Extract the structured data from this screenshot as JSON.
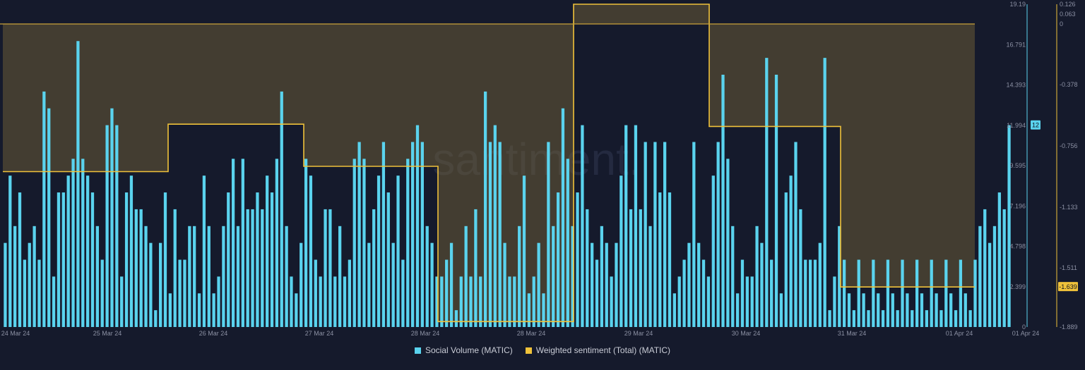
{
  "chart_data": {
    "type": "bar",
    "watermark": "santiment.",
    "x_ticks": [
      "24 Mar 24",
      "25 Mar 24",
      "26 Mar 24",
      "27 Mar 24",
      "28 Mar 24",
      "28 Mar 24",
      "29 Mar 24",
      "30 Mar 24",
      "31 Mar 24",
      "01 Apr 24",
      "01 Apr 24"
    ],
    "y_left": {
      "ticks": [
        "0",
        "2.399",
        "4.798",
        "7.196",
        "9.595",
        "11.994",
        "14.393",
        "16.791",
        "19.19"
      ],
      "ylim": [
        0,
        19.19
      ],
      "current_value_label": "12",
      "color": "#5ad3ee"
    },
    "y_right": {
      "ticks": [
        "-1.889",
        "-1.639",
        "-1.511",
        "-1.133",
        "-0.756",
        "-0.378",
        "0",
        "0.063",
        "0.126"
      ],
      "ylim": [
        -1.889,
        0.126
      ],
      "current_value_label": "-1.639",
      "color": "#f0c23a"
    },
    "series": [
      {
        "name": "Social Volume (MATIC)",
        "type": "bar",
        "color": "#5ad3ee",
        "values": [
          5,
          9,
          6,
          8,
          4,
          5,
          6,
          4,
          14,
          13,
          3,
          8,
          8,
          9,
          10,
          17,
          10,
          9,
          8,
          6,
          4,
          12,
          13,
          12,
          3,
          8,
          9,
          7,
          7,
          6,
          5,
          1,
          5,
          8,
          2,
          7,
          4,
          4,
          6,
          6,
          2,
          9,
          6,
          2,
          3,
          6,
          8,
          10,
          6,
          10,
          7,
          7,
          8,
          7,
          9,
          8,
          10,
          14,
          6,
          3,
          2,
          5,
          10,
          9,
          4,
          3,
          7,
          7,
          3,
          6,
          3,
          4,
          10,
          11,
          10,
          5,
          7,
          9,
          11,
          8,
          5,
          9,
          4,
          10,
          11,
          12,
          11,
          6,
          5,
          3,
          3,
          4,
          5,
          1,
          3,
          6,
          3,
          7,
          3,
          14,
          11,
          12,
          11,
          5,
          3,
          3,
          6,
          9,
          2,
          3,
          5,
          2,
          11,
          6,
          8,
          13,
          10,
          6,
          8,
          12,
          7,
          5,
          4,
          6,
          5,
          3,
          5,
          9,
          12,
          7,
          12,
          7,
          11,
          6,
          11,
          8,
          11,
          8,
          2,
          3,
          4,
          5,
          11,
          5,
          4,
          3,
          9,
          11,
          15,
          10,
          6,
          2,
          4,
          3,
          3,
          6,
          5,
          16,
          4,
          15,
          2,
          8,
          9,
          11,
          7,
          4,
          4,
          4,
          5,
          16,
          1,
          3,
          6,
          4,
          2,
          1,
          4,
          2,
          1,
          4,
          2,
          1,
          4,
          2,
          1,
          4,
          2,
          1,
          4,
          2,
          1,
          4,
          2,
          1,
          4,
          2,
          1,
          4,
          2,
          1,
          4,
          6,
          7,
          5,
          6,
          8,
          7,
          12
        ],
        "overlay_range_index": [
          0,
          0
        ]
      },
      {
        "name": "Weighted sentiment (Total) (MATIC)",
        "type": "step",
        "color": "#f0c23a",
        "fill": "rgba(125,105,55,0.45)",
        "segments": [
          {
            "from": "24 Mar 24",
            "value": -0.919
          },
          {
            "from": "25 Mar 24 ~18h",
            "value": -0.623
          },
          {
            "from": "26 Mar 24 ~22h",
            "value": -0.886
          },
          {
            "from": "28 Mar 24",
            "value": -1.855
          },
          {
            "from": "29 Mar 24 ~14h",
            "value": 0.126
          },
          {
            "from": "30 Mar 24 ~10h",
            "value": -0.637
          },
          {
            "from": "31 Mar 24",
            "value": -1.639
          }
        ]
      }
    ],
    "legend_position": "bottom-center"
  },
  "legend": {
    "social_volume": "Social Volume (MATIC)",
    "weighted_sentiment": "Weighted sentiment (Total) (MATIC)"
  }
}
